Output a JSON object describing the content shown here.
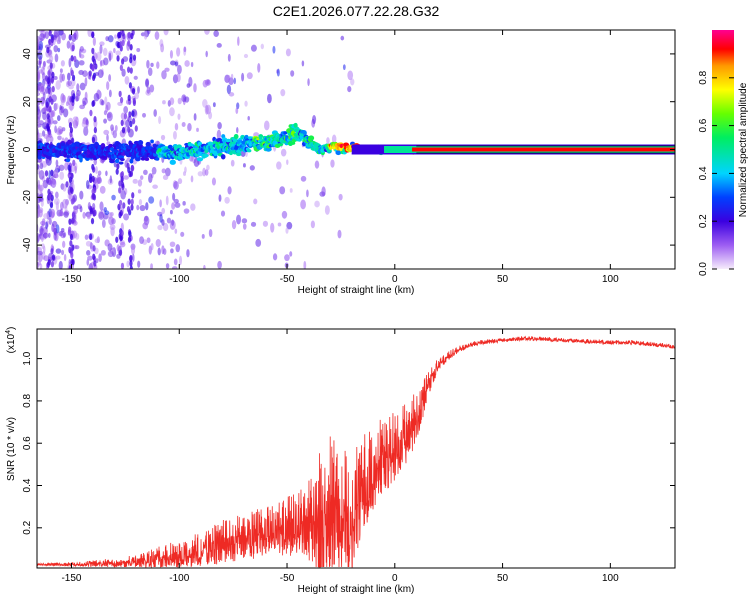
{
  "chart_data": [
    {
      "type": "heatmap",
      "title": "C2E1.2026.077.22.28.G32",
      "xlabel": "Height of straight line (km)",
      "ylabel": "Frequency (Hz)",
      "xlim": [
        -166,
        130
      ],
      "ylim": [
        -50,
        50
      ],
      "xticks": [
        -150,
        -100,
        -50,
        0,
        50,
        100
      ],
      "yticks": [
        -40,
        -20,
        0,
        20,
        40
      ],
      "ridge": {
        "heights": [
          -166,
          -140,
          -120,
          -100,
          -80,
          -60,
          -50,
          -45,
          -40,
          -35,
          -30,
          -20,
          -10,
          0,
          10,
          130
        ],
        "freqs": [
          0,
          -1,
          -1,
          -1,
          1,
          3,
          5,
          7,
          4,
          0,
          1,
          1,
          0,
          0,
          0,
          0
        ]
      },
      "colorbar": {
        "label": "Normalized spectral amplitude",
        "ticks": [
          "0.0",
          "0.2",
          "0.4",
          "0.6",
          "0.8"
        ],
        "tick_values": [
          0,
          0.2,
          0.4,
          0.6,
          0.8
        ],
        "range": [
          0,
          1
        ]
      }
    },
    {
      "type": "line",
      "xlabel": "Height of straight line (km)",
      "ylabel": "SNR (10 * v/v)",
      "multiplier": "(x10",
      "multiplier_exp": "4",
      "multiplier_close": ")",
      "xlim": [
        -166,
        130
      ],
      "ylim": [
        0.01,
        1.14
      ],
      "xticks": [
        -150,
        -100,
        -50,
        0,
        50,
        100
      ],
      "yticks": [
        "0.2",
        "0.4",
        "0.6",
        "0.8",
        "1.0"
      ],
      "ytick_values": [
        0.2,
        0.4,
        0.6,
        0.8,
        1.0
      ],
      "series": [
        {
          "name": "SNR",
          "color": "#ee2a24",
          "x": [
            -166,
            -150,
            -130,
            -115,
            -100,
            -90,
            -80,
            -70,
            -60,
            -50,
            -45,
            -40,
            -35,
            -30,
            -25,
            -20,
            -15,
            -10,
            -5,
            0,
            5,
            10,
            15,
            20,
            25,
            30,
            35,
            40,
            50,
            60,
            80,
            100,
            110,
            120,
            130
          ],
          "y": [
            0.03,
            0.03,
            0.04,
            0.06,
            0.09,
            0.12,
            0.16,
            0.19,
            0.21,
            0.24,
            0.26,
            0.28,
            0.32,
            0.38,
            0.36,
            0.35,
            0.45,
            0.55,
            0.6,
            0.62,
            0.68,
            0.75,
            0.88,
            0.98,
            1.02,
            1.05,
            1.07,
            1.08,
            1.09,
            1.1,
            1.09,
            1.08,
            1.08,
            1.07,
            1.06
          ],
          "noise": [
            0.005,
            0.01,
            0.02,
            0.04,
            0.07,
            0.08,
            0.1,
            0.11,
            0.12,
            0.13,
            0.16,
            0.18,
            0.3,
            0.32,
            0.3,
            0.3,
            0.22,
            0.2,
            0.18,
            0.16,
            0.14,
            0.12,
            0.06,
            0.03,
            0.02,
            0.015,
            0.012,
            0.01,
            0.01,
            0.01,
            0.01,
            0.01,
            0.01,
            0.01,
            0.01
          ]
        }
      ]
    }
  ]
}
